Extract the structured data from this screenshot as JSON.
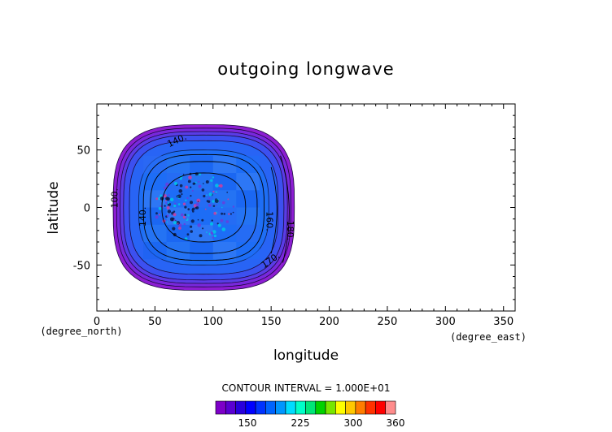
{
  "chart_data": {
    "type": "heatmap",
    "title": "outgoing longwave",
    "xlabel": "longitude",
    "ylabel": "latitude",
    "x_units": "(degree_east)",
    "y_units": "(degree_north)",
    "xlim": [
      0,
      360
    ],
    "ylim": [
      -90,
      90
    ],
    "x_ticks": [
      0,
      50,
      100,
      150,
      200,
      250,
      300,
      350
    ],
    "y_ticks": [
      -50,
      0,
      50
    ],
    "contour_interval_text": "CONTOUR INTERVAL = 1.000E+01",
    "contour_labels": [
      {
        "text": "140",
        "lon": 70,
        "lat": 56,
        "rotate": -25
      },
      {
        "text": "100",
        "lon": 18,
        "lat": 8,
        "rotate": -90
      },
      {
        "text": "140",
        "lon": 42,
        "lat": -8,
        "rotate": -90
      },
      {
        "text": "160",
        "lon": 146,
        "lat": -12,
        "rotate": 90
      },
      {
        "text": "180",
        "lon": 164,
        "lat": -20,
        "rotate": 90
      },
      {
        "text": "170",
        "lon": 151,
        "lat": -48,
        "rotate": -35
      }
    ],
    "colorbar": {
      "ticks": [
        150,
        225,
        300,
        360
      ],
      "range": [
        105,
        360
      ],
      "colors": [
        "#7d00c8",
        "#5a00d2",
        "#2800dc",
        "#0000ff",
        "#0032ff",
        "#0064ff",
        "#0096ff",
        "#00dcff",
        "#00ffc8",
        "#00e678",
        "#00d200",
        "#78e600",
        "#ffff00",
        "#ffc800",
        "#ff7d00",
        "#ff3200",
        "#ff0000",
        "#ff8c8c"
      ]
    },
    "field": {
      "center_lon": 92,
      "center_lat": 0,
      "rings": [
        {
          "value": 110,
          "color": "#8c1ed2",
          "outer_rx_deg": 78,
          "outer_ry_deg": 72
        },
        {
          "value": 120,
          "color": "#7828dc",
          "outer_rx_deg": 75,
          "outer_ry_deg": 69
        },
        {
          "value": 130,
          "color": "#5a3ce6",
          "outer_rx_deg": 72,
          "outer_ry_deg": 66
        },
        {
          "value": 150,
          "color": "#3c50f0",
          "outer_rx_deg": 69,
          "outer_ry_deg": 63
        },
        {
          "value": 170,
          "color": "#2864f5",
          "outer_rx_deg": 64,
          "outer_ry_deg": 58
        }
      ]
    }
  }
}
